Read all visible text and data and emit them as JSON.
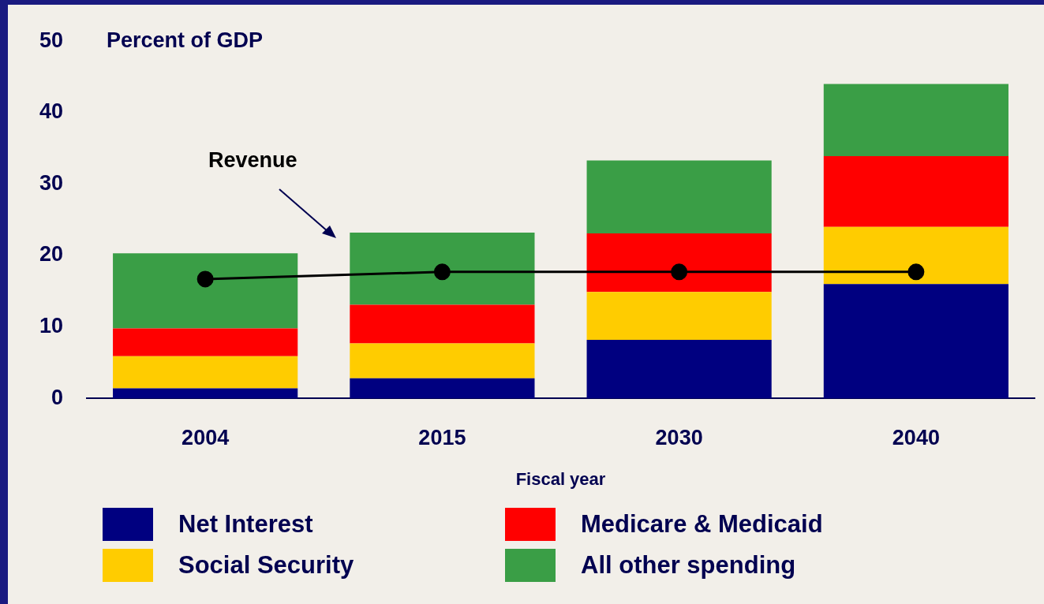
{
  "chart_data": {
    "type": "bar",
    "stacked": true,
    "ylabel": "Percent of GDP",
    "xlabel": "Fiscal year",
    "categories": [
      "2004",
      "2015",
      "2030",
      "2040"
    ],
    "ylim": [
      0,
      50
    ],
    "yticks": [
      0,
      10,
      20,
      30,
      40,
      50
    ],
    "grid": false,
    "legend": "bottom",
    "series": [
      {
        "name": "Net Interest",
        "color": "#000080",
        "values": [
          1.4,
          2.8,
          8.2,
          16.0
        ]
      },
      {
        "name": "Social Security",
        "color": "#ffcc00",
        "values": [
          4.5,
          4.9,
          6.7,
          8.0
        ]
      },
      {
        "name": "Medicare & Medicaid",
        "color": "#ff0000",
        "values": [
          3.9,
          5.4,
          8.2,
          9.9
        ]
      },
      {
        "name": "All other spending",
        "color": "#3a9e46",
        "values": [
          10.5,
          10.1,
          10.2,
          10.1
        ]
      },
      {
        "name": "Revenue",
        "type": "line",
        "color": "#000000",
        "marker": "circle",
        "values": [
          16.7,
          17.7,
          17.7,
          17.7
        ]
      }
    ]
  }
}
